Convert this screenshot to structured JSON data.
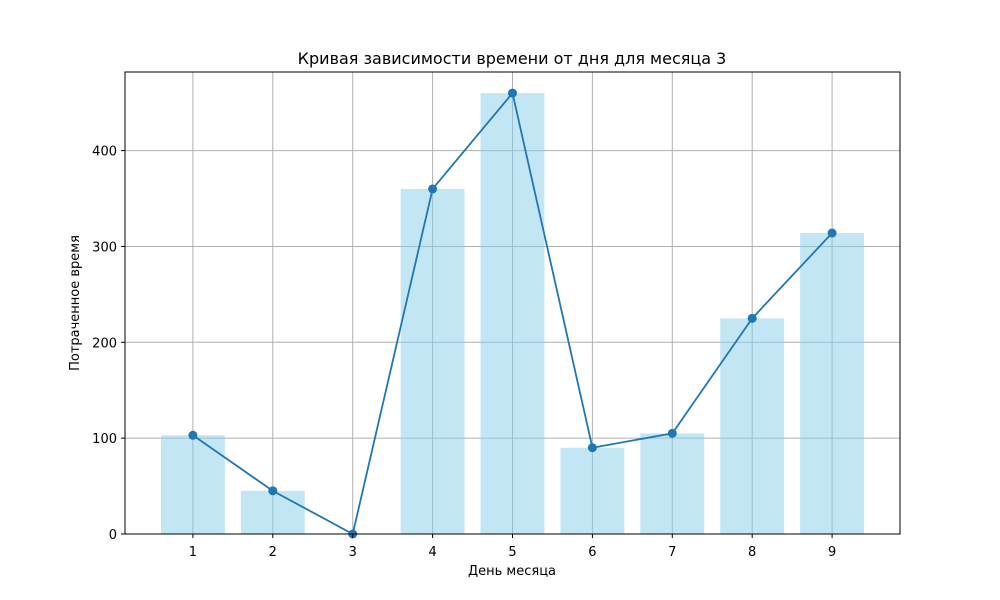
{
  "chart_data": {
    "type": "bar",
    "title": "Кривая зависимости времени от дня для месяца 3",
    "xlabel": "День месяца",
    "ylabel": "Потраченное время",
    "categories": [
      1,
      2,
      3,
      4,
      5,
      6,
      7,
      8,
      9
    ],
    "values": [
      103,
      45,
      0,
      360,
      460,
      90,
      105,
      225,
      314
    ],
    "overlay": {
      "type": "line",
      "values": [
        103,
        45,
        0,
        360,
        460,
        90,
        105,
        225,
        314
      ],
      "markers": true
    },
    "ylim": [
      0,
      482
    ],
    "yticks": [
      0,
      100,
      200,
      300,
      400
    ],
    "grid": true,
    "legend": "none",
    "colors": {
      "bar": "#87ceeb",
      "line": "#1f77b4"
    }
  }
}
